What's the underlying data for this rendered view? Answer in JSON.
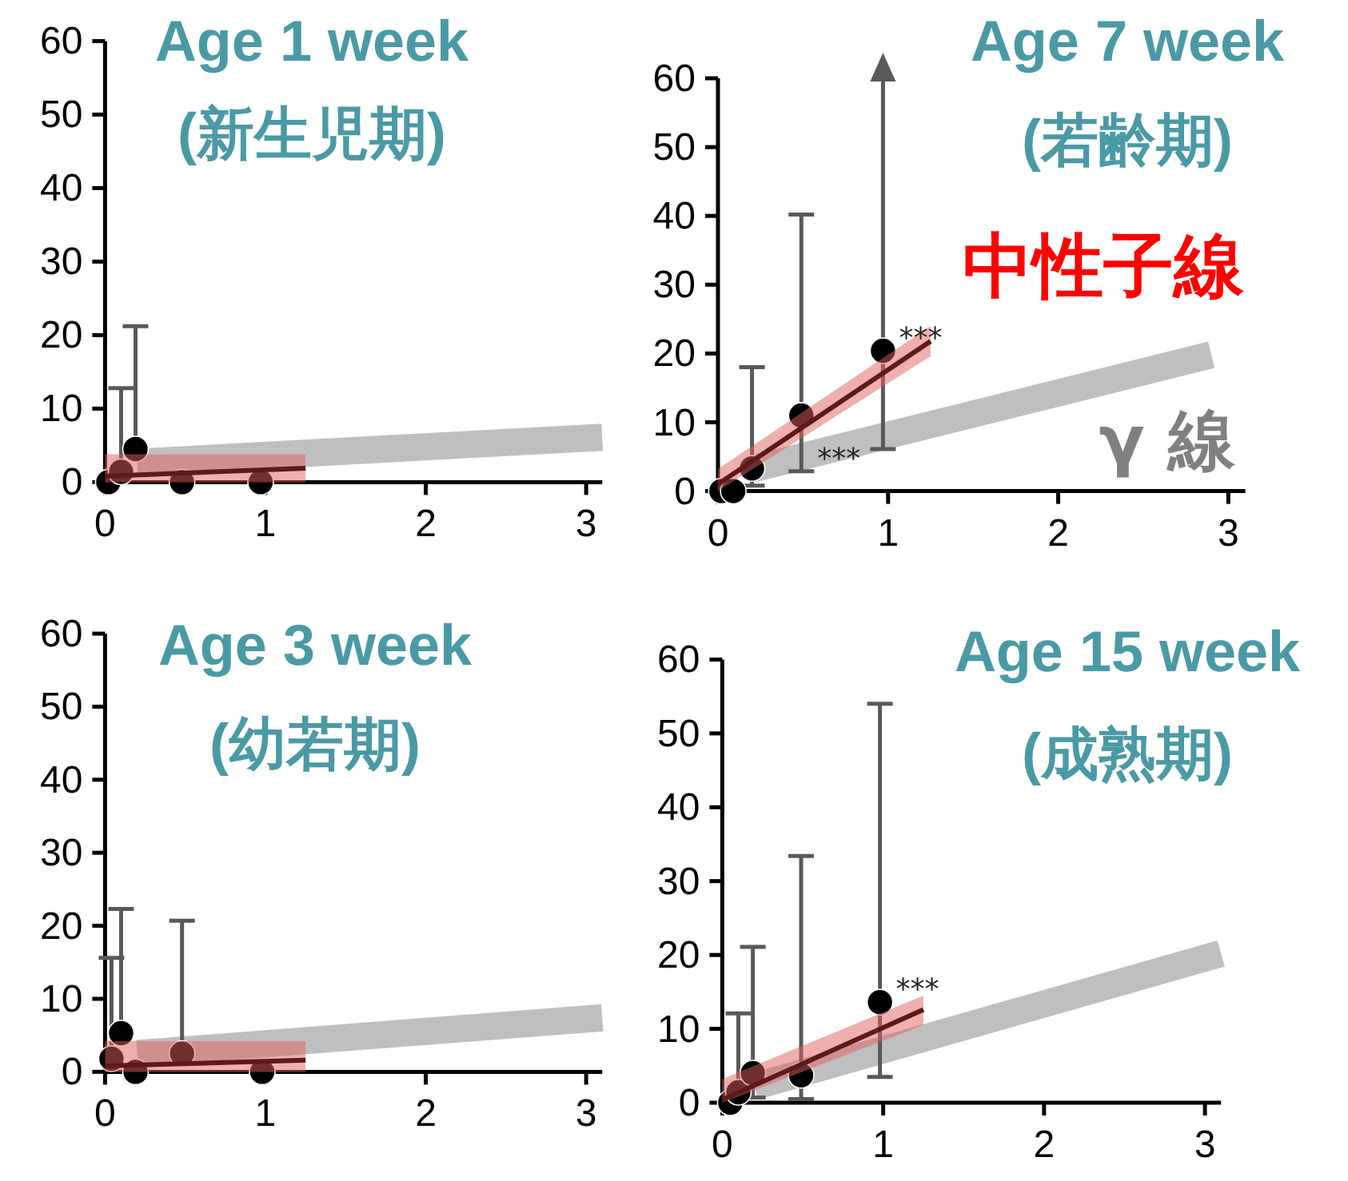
{
  "chart_data": [
    {
      "type": "scatter",
      "title": "Age 1 week",
      "subtitle": "(新生児期)",
      "xlim": [
        0,
        3.1
      ],
      "xticks": [
        0,
        1,
        2,
        3
      ],
      "ylim": [
        0,
        60
      ],
      "yticks": [
        0,
        10,
        20,
        30,
        40,
        50,
        60
      ],
      "series": [
        {
          "type": "line",
          "marker": "none",
          "color": "#bfbfbf",
          "x": [
            0.2,
            3.1
          ],
          "values": [
            2.7,
            6.1
          ]
        },
        {
          "type": "scatter",
          "marker": "circle",
          "color": "#000000",
          "x": [
            0.02,
            0.1,
            0.19,
            0.48,
            0.97
          ],
          "values": [
            0,
            1.4,
            4.5,
            0,
            0
          ],
          "errors": [
            null,
            [
              1.4,
              12.8
            ],
            [
              4.5,
              21.2
            ],
            null,
            null
          ]
        },
        {
          "type": "line",
          "marker": "none",
          "color": "#5c1a1a",
          "x": [
            0,
            1.25
          ],
          "values": [
            0.8,
            1.9
          ],
          "lower": [
            0,
            0
          ],
          "upper": [
            3.8,
            3.8
          ]
        }
      ]
    },
    {
      "type": "scatter",
      "title": "Age 7 week",
      "subtitle": "(若齢期)",
      "xlim": [
        0,
        3.1
      ],
      "xticks": [
        0,
        1,
        2,
        3
      ],
      "ylim": [
        0,
        60
      ],
      "yticks": [
        0,
        10,
        20,
        30,
        40,
        50,
        60
      ],
      "series": [
        {
          "type": "line",
          "marker": "none",
          "name": "γ 線",
          "color": "#bfbfbf",
          "x": [
            0.2,
            2.9
          ],
          "values": [
            3.2,
            19.8
          ]
        },
        {
          "type": "scatter",
          "marker": "circle",
          "color": "#000000",
          "x": [
            0.02,
            0.09,
            0.2,
            0.49,
            0.97
          ],
          "values": [
            0,
            0,
            3.3,
            11,
            20.4
          ],
          "errors": [
            null,
            null,
            [
              0.8,
              18
            ],
            [
              2.9,
              40.2
            ],
            [
              6.1,
              60
            ]
          ]
        },
        {
          "type": "line",
          "marker": "none",
          "name": "中性子線",
          "color": "#5c1a1a",
          "x": [
            0,
            1.25
          ],
          "values": [
            1.0,
            21.8
          ],
          "lower": [
            0,
            19.6
          ],
          "upper": [
            3.2,
            24
          ]
        }
      ],
      "annotations": [
        {
          "text": "***",
          "x": 0.97,
          "y": 20.4
        },
        {
          "text": "***",
          "x": 0.49,
          "y": 2.9
        }
      ]
    },
    {
      "type": "scatter",
      "title": "Age 3 week",
      "subtitle": "(幼若期)",
      "xlim": [
        0,
        3.1
      ],
      "xticks": [
        0,
        1,
        2,
        3
      ],
      "ylim": [
        0,
        60
      ],
      "yticks": [
        0,
        10,
        20,
        30,
        40,
        50,
        60
      ],
      "series": [
        {
          "type": "line",
          "marker": "none",
          "color": "#bfbfbf",
          "x": [
            0.2,
            3.1
          ],
          "values": [
            2.5,
            7.4
          ]
        },
        {
          "type": "scatter",
          "marker": "circle",
          "color": "#000000",
          "x": [
            0.04,
            0.1,
            0.19,
            0.48,
            0.98
          ],
          "values": [
            1.8,
            5.3,
            0,
            2.5,
            0
          ],
          "errors": [
            [
              1.8,
              15.6
            ],
            [
              5.3,
              22.3
            ],
            null,
            [
              2.5,
              20.7
            ],
            null
          ]
        },
        {
          "type": "line",
          "marker": "none",
          "color": "#5c1a1a",
          "x": [
            0,
            1.25
          ],
          "values": [
            0.8,
            1.6
          ],
          "lower": [
            0,
            0
          ],
          "upper": [
            4.2,
            4.2
          ]
        }
      ]
    },
    {
      "type": "scatter",
      "title": "Age 15 week",
      "subtitle": "(成熟期)",
      "xlim": [
        0,
        3.1
      ],
      "xticks": [
        0,
        1,
        2,
        3
      ],
      "ylim": [
        0,
        60
      ],
      "yticks": [
        0,
        10,
        20,
        30,
        40,
        50,
        60
      ],
      "series": [
        {
          "type": "line",
          "marker": "none",
          "color": "#bfbfbf",
          "x": [
            0.2,
            3.1
          ],
          "values": [
            2.2,
            20.2
          ]
        },
        {
          "type": "scatter",
          "marker": "circle",
          "color": "#000000",
          "x": [
            0.05,
            0.1,
            0.19,
            0.49,
            0.98
          ],
          "values": [
            0,
            1.4,
            4.0,
            3.7,
            13.6
          ],
          "errors": [
            null,
            [
              1.4,
              12.1
            ],
            [
              0.7,
              21.1
            ],
            [
              0.5,
              33.4
            ],
            [
              3.5,
              54
            ]
          ]
        },
        {
          "type": "line",
          "marker": "none",
          "color": "#5c1a1a",
          "x": [
            0,
            1.25
          ],
          "values": [
            0.4,
            12.6
          ],
          "lower": [
            0,
            10.5
          ],
          "upper": [
            3.2,
            14.5
          ]
        }
      ],
      "annotations": [
        {
          "text": "***",
          "x": 0.98,
          "y": 13.6
        }
      ]
    }
  ]
}
